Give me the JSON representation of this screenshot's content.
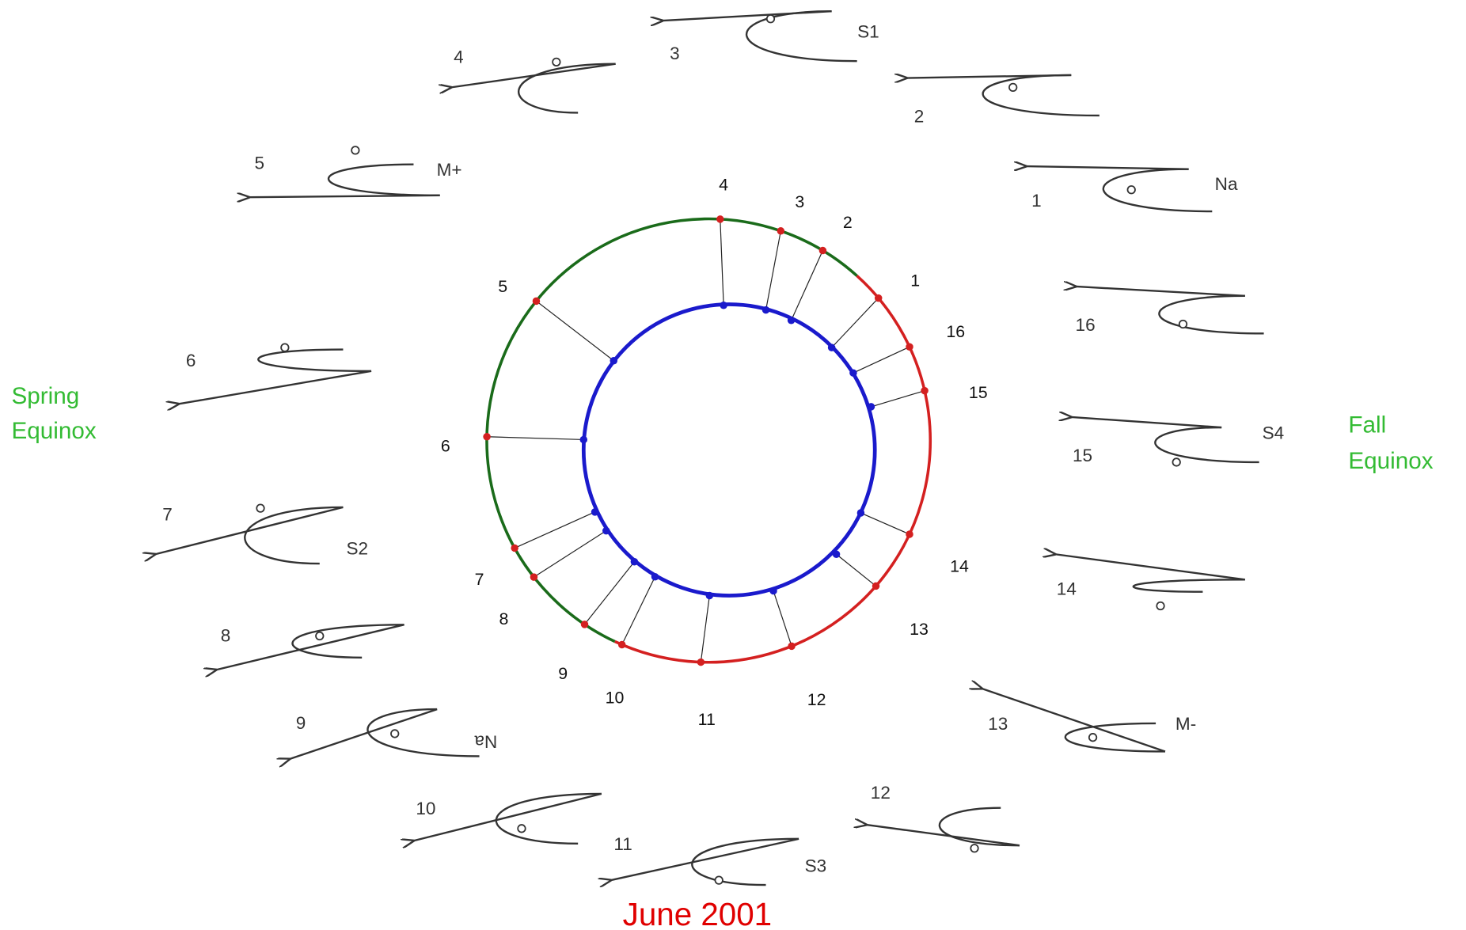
{
  "annotations": {
    "spring_equinox": [
      "Spring",
      "Equinox"
    ],
    "fall_equinox": [
      "Fall",
      "Equinox"
    ],
    "date": "June 2001"
  },
  "ring_points": [
    "1",
    "2",
    "3",
    "4",
    "5",
    "6",
    "7",
    "8",
    "9",
    "10",
    "11",
    "12",
    "13",
    "14",
    "15",
    "16"
  ],
  "loops": [
    {
      "number": "1",
      "tag": "Na"
    },
    {
      "number": "2"
    },
    {
      "number": "3",
      "tag": "S1"
    },
    {
      "number": "4"
    },
    {
      "number": "5",
      "tag": "M+"
    },
    {
      "number": "6"
    },
    {
      "number": "7",
      "tag": "S2"
    },
    {
      "number": "8"
    },
    {
      "number": "9",
      "tag": "Na"
    },
    {
      "number": "10"
    },
    {
      "number": "11",
      "tag": "S3"
    },
    {
      "number": "12"
    },
    {
      "number": "13",
      "tag": "M-"
    },
    {
      "number": "14"
    },
    {
      "number": "15",
      "tag": "S4"
    },
    {
      "number": "16"
    }
  ]
}
